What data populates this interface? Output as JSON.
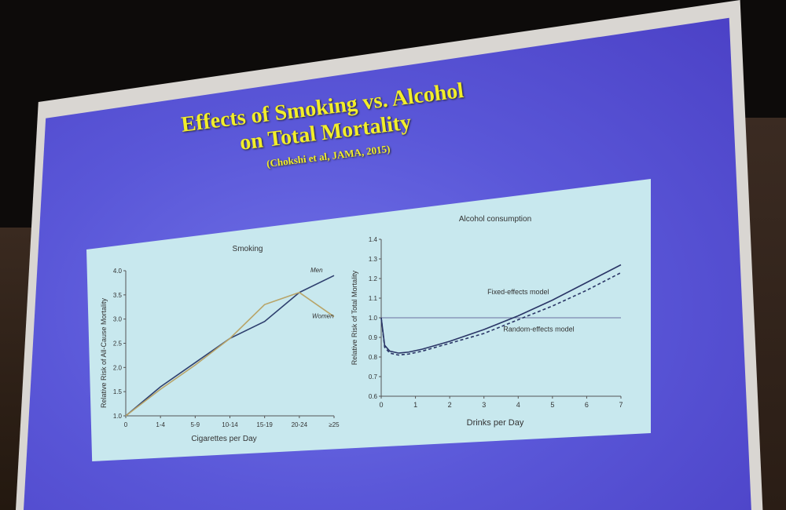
{
  "slide": {
    "title_line1": "Effects of Smoking vs. Alcohol",
    "title_line2": "on Total Mortality",
    "citation": "(Chokshi et al, JAMA, 2015)"
  },
  "colors": {
    "slide_bg": "#5a57d8",
    "title": "#f2ee2a",
    "panel_bg": "#c8e8ee",
    "men": "#2e3f6e",
    "women": "#b8a468"
  },
  "chart_data": [
    {
      "type": "line",
      "title": "Smoking",
      "xlabel": "Cigarettes per Day",
      "ylabel": "Relative Risk of All-Cause Mortality",
      "categories": [
        "0",
        "1-4",
        "5-9",
        "10-14",
        "15-19",
        "20-24",
        "≥25"
      ],
      "ylim": [
        1.0,
        4.0
      ],
      "yticks": [
        "1.0",
        "1.5",
        "2.0",
        "2.5",
        "3.0",
        "3.5",
        "4.0"
      ],
      "series": [
        {
          "name": "Men",
          "values": [
            1.0,
            1.6,
            2.1,
            2.6,
            2.95,
            3.55,
            3.9
          ]
        },
        {
          "name": "Women",
          "values": [
            1.0,
            1.55,
            2.05,
            2.6,
            3.3,
            3.55,
            3.05
          ]
        }
      ]
    },
    {
      "type": "line",
      "title": "Alcohol consumption",
      "xlabel": "Drinks per Day",
      "ylabel": "Relative Risk of Total Mortality",
      "xlim": [
        0,
        7
      ],
      "ylim": [
        0.6,
        1.4
      ],
      "xticks": [
        "0",
        "1",
        "2",
        "3",
        "4",
        "5",
        "6",
        "7"
      ],
      "yticks": [
        "0.6",
        "0.7",
        "0.8",
        "0.9",
        "1.0",
        "1.1",
        "1.2",
        "1.3",
        "1.4"
      ],
      "series": [
        {
          "name": "Fixed-effects model",
          "x": [
            0,
            0.1,
            0.25,
            0.5,
            0.8,
            1.2,
            1.6,
            2,
            3,
            4,
            5,
            6,
            7
          ],
          "y": [
            1.0,
            0.86,
            0.83,
            0.82,
            0.825,
            0.84,
            0.86,
            0.88,
            0.94,
            1.01,
            1.09,
            1.18,
            1.27
          ]
        },
        {
          "name": "Random-effects model",
          "x": [
            0,
            0.1,
            0.25,
            0.5,
            0.8,
            1.2,
            1.6,
            2,
            3,
            4,
            5,
            6,
            7
          ],
          "y": [
            1.0,
            0.85,
            0.82,
            0.81,
            0.815,
            0.83,
            0.85,
            0.87,
            0.92,
            0.99,
            1.06,
            1.14,
            1.23
          ]
        }
      ]
    }
  ]
}
